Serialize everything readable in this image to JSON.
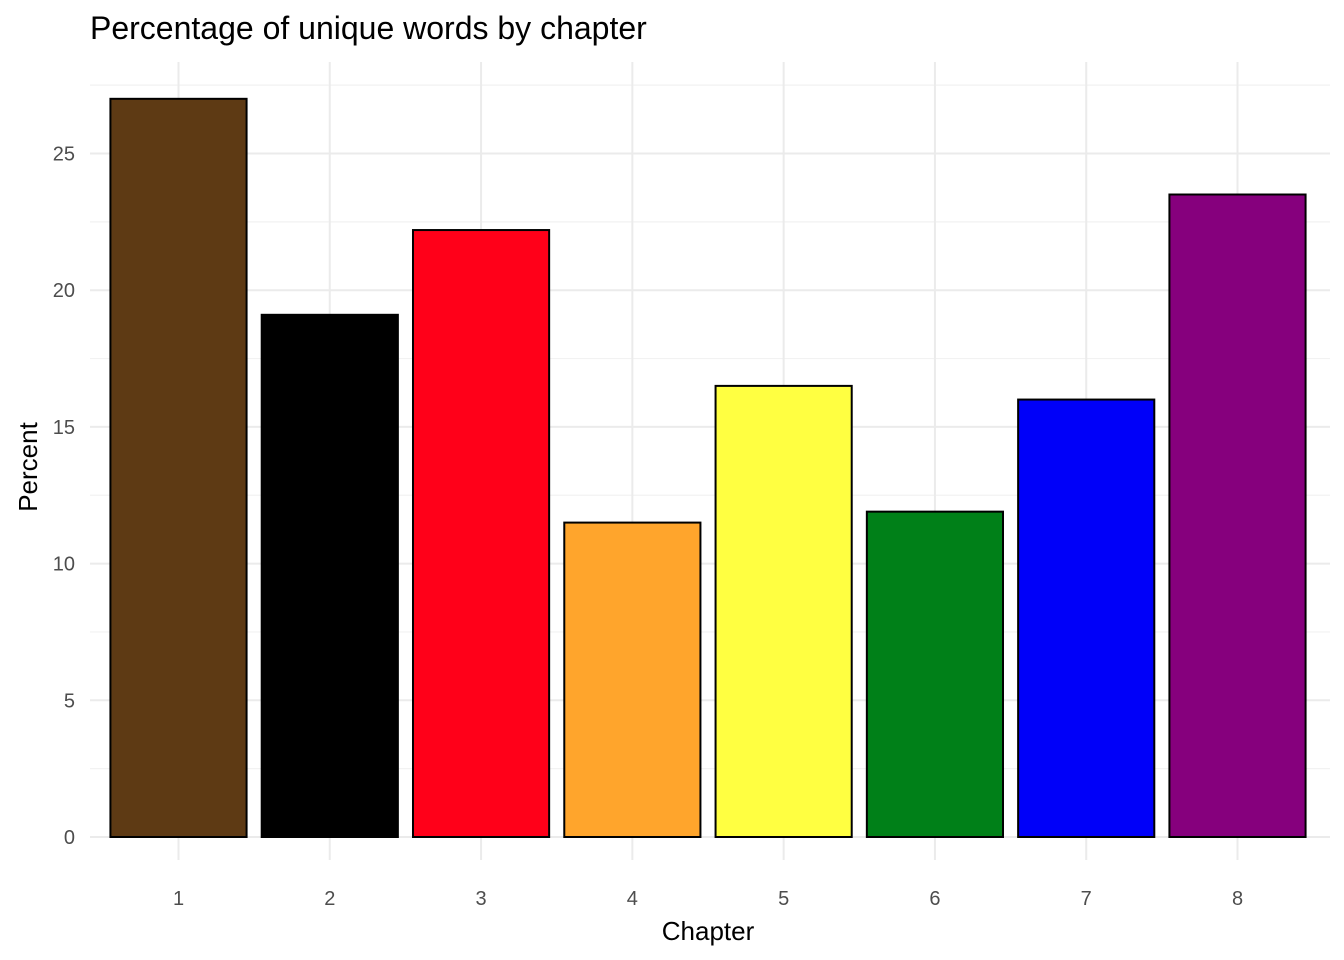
{
  "chart_data": {
    "type": "bar",
    "title": "Percentage of unique words by chapter",
    "xlabel": "Chapter",
    "ylabel": "Percent",
    "categories": [
      "1",
      "2",
      "3",
      "4",
      "5",
      "6",
      "7",
      "8"
    ],
    "values": [
      27.0,
      19.1,
      22.2,
      11.5,
      16.5,
      11.9,
      16.0,
      23.5
    ],
    "colors": [
      "#5E3A14",
      "#000000",
      "#FF0019",
      "#FFA52C",
      "#FFFF41",
      "#008018",
      "#0000F9",
      "#86007D"
    ],
    "bar_outline": "#000000",
    "ylim": [
      0,
      28
    ],
    "yticks": [
      0,
      5,
      10,
      15,
      20,
      25
    ],
    "grid": true,
    "legend": "none"
  }
}
